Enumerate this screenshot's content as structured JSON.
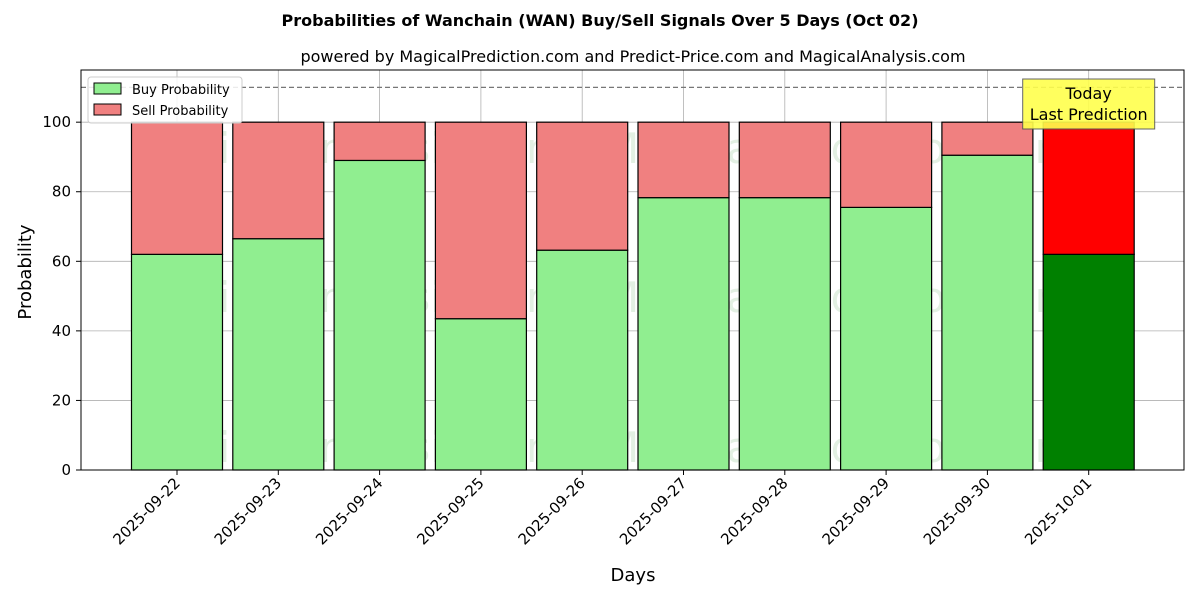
{
  "chart_data": {
    "type": "bar",
    "stacked": true,
    "title": "Probabilities of Wanchain (WAN) Buy/Sell Signals Over 5 Days (Oct 02)",
    "subtitle": "powered by MagicalPrediction.com and Predict-Price.com and MagicalAnalysis.com",
    "xlabel": "Days",
    "ylabel": "Probability",
    "ylim": [
      0,
      115
    ],
    "yticks": [
      0,
      20,
      40,
      60,
      80,
      100
    ],
    "grid": true,
    "legend_position": "top-left",
    "reference_line": 110,
    "categories": [
      "2025-09-22",
      "2025-09-23",
      "2025-09-24",
      "2025-09-25",
      "2025-09-26",
      "2025-09-27",
      "2025-09-28",
      "2025-09-29",
      "2025-09-30",
      "2025-10-01"
    ],
    "series": [
      {
        "name": "Buy Probability",
        "values": [
          62,
          66.5,
          89,
          43.5,
          63.2,
          78.3,
          78.3,
          75.5,
          90.5,
          62
        ],
        "color": "#90ee90",
        "highlight_color": "#008000"
      },
      {
        "name": "Sell Probability",
        "values": [
          38,
          33.5,
          11,
          56.5,
          36.8,
          21.7,
          21.7,
          24.5,
          9.5,
          38
        ],
        "color": "#f08080",
        "highlight_color": "#ff0000"
      }
    ],
    "highlight_index": 9,
    "annotation": {
      "lines": [
        "Today",
        "Last Prediction"
      ],
      "box_color": "#ffff4d"
    },
    "watermarks": [
      "MagicalAnalysis.com",
      "MagicalPrediction.com",
      "MagicalAnalysis.com",
      "MagicalPrediction.com",
      "MagicalAnalysis.com",
      "MagicalPrediction.com"
    ]
  }
}
